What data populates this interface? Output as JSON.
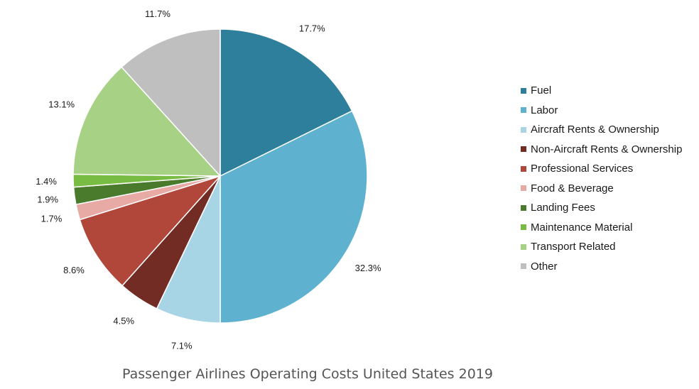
{
  "chart_data": {
    "type": "pie",
    "title": "Passenger Airlines Operating Costs United States 2019",
    "legend_position": "right",
    "slices": [
      {
        "name": "Fuel",
        "value": 17.7,
        "label": "17.7%",
        "color": "#2e7f9c"
      },
      {
        "name": "Labor",
        "value": 32.3,
        "label": "32.3%",
        "color": "#5eb2d0"
      },
      {
        "name": "Aircraft Rents & Ownership",
        "value": 7.1,
        "label": "7.1%",
        "color": "#a8d5e5"
      },
      {
        "name": "Non-Aircraft Rents & Ownership",
        "value": 4.5,
        "label": "4.5%",
        "color": "#722c24"
      },
      {
        "name": "Professional Services",
        "value": 8.6,
        "label": "8.6%",
        "color": "#b0473a"
      },
      {
        "name": "Food & Beverage",
        "value": 1.7,
        "label": "1.7%",
        "color": "#e8aaa5"
      },
      {
        "name": "Landing Fees",
        "value": 1.9,
        "label": "1.9%",
        "color": "#4a7a2b"
      },
      {
        "name": "Maintenance Material",
        "value": 1.4,
        "label": "1.4%",
        "color": "#79bc43"
      },
      {
        "name": "Transport Related",
        "value": 13.1,
        "label": "13.1%",
        "color": "#a7d285"
      },
      {
        "name": "Other",
        "value": 11.7,
        "label": "11.7%",
        "color": "#bfbfbf"
      }
    ]
  }
}
